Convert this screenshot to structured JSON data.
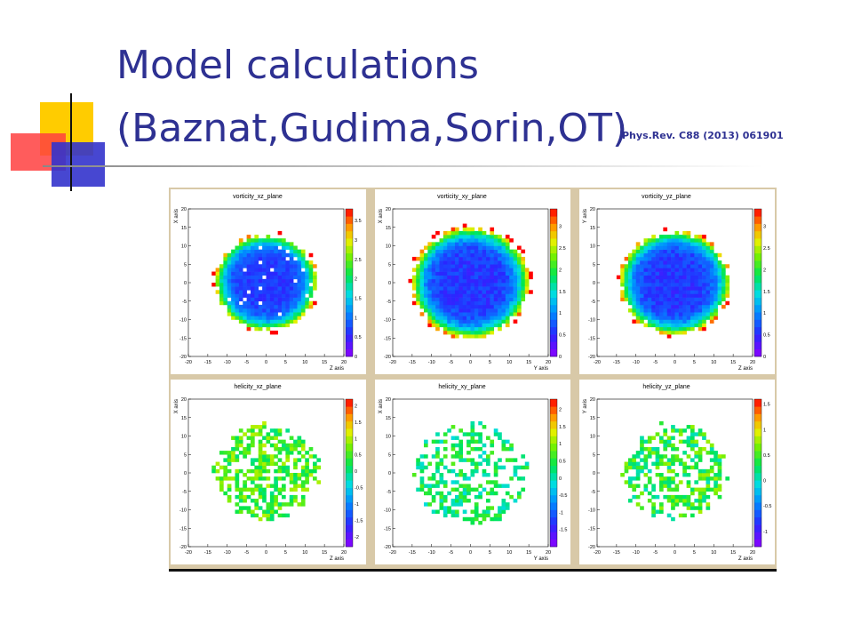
{
  "slide": {
    "title_line1": "Model calculations",
    "title_line2": "(Baznat,Gudima,Sorin,OT)",
    "reference": "Phys.Rev. C88 (2013) 061901"
  },
  "colors": {
    "title": "#2e3192",
    "deco_yellow": "#ffcc00",
    "deco_red": "#ff3333",
    "deco_blue": "#3333cc",
    "panel_frame": "#d8c9a8"
  },
  "chart_data": [
    {
      "type": "heatmap",
      "title": "vorticity_xz_plane",
      "xlabel": "Z axis",
      "ylabel": "X axis",
      "xlim": [
        -20,
        20
      ],
      "ylim": [
        -20,
        20
      ],
      "xticks": [
        -20,
        -15,
        -10,
        -5,
        0,
        5,
        10,
        15,
        20
      ],
      "yticks": [
        -20,
        -15,
        -10,
        -5,
        0,
        5,
        10,
        15,
        20
      ],
      "zlim": [
        0,
        3.8
      ],
      "colorbar_ticks": [
        0,
        0.5,
        1,
        1.5,
        2,
        2.5,
        3,
        3.5
      ],
      "shape": {
        "cx": 0,
        "cy": 0,
        "r": 13,
        "base": 0.5,
        "edge": 2.5,
        "gaps": 0.05
      }
    },
    {
      "type": "heatmap",
      "title": "vorticity_xy_plane",
      "xlabel": "Y axis",
      "ylabel": "X axis",
      "xlim": [
        -20,
        20
      ],
      "ylim": [
        -20,
        20
      ],
      "xticks": [
        -20,
        -15,
        -10,
        -5,
        0,
        5,
        10,
        15,
        20
      ],
      "yticks": [
        -20,
        -15,
        -10,
        -5,
        0,
        5,
        10,
        15,
        20
      ],
      "zlim": [
        0,
        3.4
      ],
      "colorbar_ticks": [
        0,
        0.5,
        1,
        1.5,
        2,
        2.5,
        3
      ],
      "shape": {
        "cx": 0,
        "cy": 0,
        "r": 15,
        "base": 0.4,
        "edge": 2.4,
        "gaps": 0.0
      }
    },
    {
      "type": "heatmap",
      "title": "vorticity_yz_plane",
      "xlabel": "Z axis",
      "ylabel": "Y axis",
      "xlim": [
        -20,
        20
      ],
      "ylim": [
        -20,
        20
      ],
      "xticks": [
        -20,
        -15,
        -10,
        -5,
        0,
        5,
        10,
        15,
        20
      ],
      "yticks": [
        -20,
        -15,
        -10,
        -5,
        0,
        5,
        10,
        15,
        20
      ],
      "zlim": [
        0,
        3.4
      ],
      "colorbar_ticks": [
        0,
        0.5,
        1,
        1.5,
        2,
        2.5,
        3
      ],
      "shape": {
        "cx": 0,
        "cy": 0,
        "r": 14,
        "base": 0.4,
        "edge": 2.3,
        "gaps": 0.0
      }
    },
    {
      "type": "heatmap",
      "title": "helicity_xz_plane",
      "xlabel": "Z axis",
      "ylabel": "X axis",
      "xlim": [
        -20,
        20
      ],
      "ylim": [
        -20,
        20
      ],
      "xticks": [
        -20,
        -15,
        -10,
        -5,
        0,
        5,
        10,
        15,
        20
      ],
      "yticks": [
        -20,
        -15,
        -10,
        -5,
        0,
        5,
        10,
        15,
        20
      ],
      "zlim": [
        -2.3,
        2.2
      ],
      "colorbar_ticks": [
        -2,
        -1.5,
        -1,
        -0.5,
        0,
        0.5,
        1,
        1.5,
        2
      ],
      "shape": {
        "cx": 0,
        "cy": 0,
        "r": 13,
        "base": 0.5,
        "edge": 0.7,
        "gaps": 0.45
      }
    },
    {
      "type": "heatmap",
      "title": "helicity_xy_plane",
      "xlabel": "Y axis",
      "ylabel": "X axis",
      "xlim": [
        -20,
        20
      ],
      "ylim": [
        -20,
        20
      ],
      "xticks": [
        -20,
        -15,
        -10,
        -5,
        0,
        5,
        10,
        15,
        20
      ],
      "yticks": [
        -20,
        -15,
        -10,
        -5,
        0,
        5,
        10,
        15,
        20
      ],
      "zlim": [
        -2.0,
        2.3
      ],
      "colorbar_ticks": [
        -1.5,
        -1,
        -0.5,
        0,
        0.5,
        1,
        1.5,
        2
      ],
      "shape": {
        "cx": 0,
        "cy": 0,
        "r": 14,
        "base": 0.3,
        "edge": 0.6,
        "gaps": 0.55
      }
    },
    {
      "type": "heatmap",
      "title": "helicity_yz_plane",
      "xlabel": "Z axis",
      "ylabel": "Y axis",
      "xlim": [
        -20,
        20
      ],
      "ylim": [
        -20,
        20
      ],
      "xticks": [
        -20,
        -15,
        -10,
        -5,
        0,
        5,
        10,
        15,
        20
      ],
      "yticks": [
        -20,
        -15,
        -10,
        -5,
        0,
        5,
        10,
        15,
        20
      ],
      "zlim": [
        -1.3,
        1.6
      ],
      "colorbar_ticks": [
        -1,
        -0.5,
        0,
        0.5,
        1,
        1.5
      ],
      "shape": {
        "cx": 0,
        "cy": 0,
        "r": 13,
        "base": 0.4,
        "edge": 0.5,
        "gaps": 0.5
      }
    }
  ]
}
